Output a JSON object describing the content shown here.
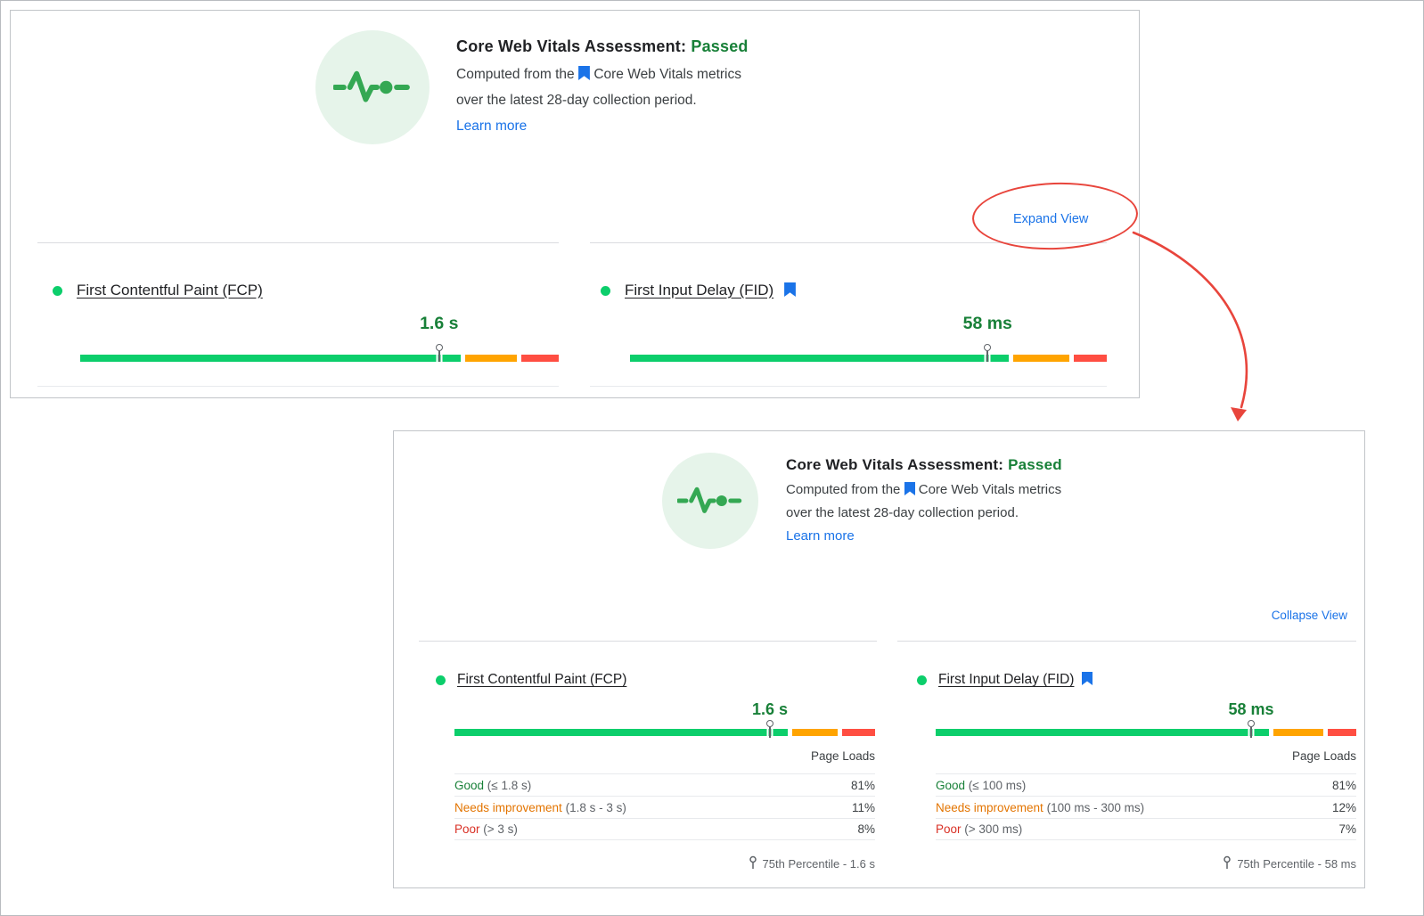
{
  "assessment": {
    "title": "Core Web Vitals Assessment:",
    "status": "Passed",
    "desc_prefix": "Computed from the",
    "desc_metrics_label": "Core Web Vitals metrics",
    "desc_line2": "over the latest 28-day collection period.",
    "learn_more_label": "Learn more"
  },
  "links": {
    "expand_view": "Expand View",
    "collapse_view": "Collapse View"
  },
  "labels": {
    "page_loads": "Page Loads"
  },
  "metrics": {
    "fcp": {
      "name": "First Contentful Paint (FCP)",
      "value": "1.6 s",
      "marker_percent": 75,
      "distribution": {
        "good": 81,
        "needs_improvement": 11,
        "poor": 8
      },
      "rows": [
        {
          "label": "Good",
          "range": "(≤ 1.8 s)",
          "value": "81%"
        },
        {
          "label": "Needs improvement",
          "range": "(1.8 s - 3 s)",
          "value": "11%"
        },
        {
          "label": "Poor",
          "range": "(> 3 s)",
          "value": "8%"
        }
      ],
      "percentile": "75th Percentile - 1.6 s"
    },
    "fid": {
      "name": "First Input Delay (FID)",
      "value": "58 ms",
      "marker_percent": 75,
      "distribution": {
        "good": 81,
        "needs_improvement": 12,
        "poor": 7
      },
      "rows": [
        {
          "label": "Good",
          "range": "(≤ 100 ms)",
          "value": "81%"
        },
        {
          "label": "Needs improvement",
          "range": "(100 ms - 300 ms)",
          "value": "12%"
        },
        {
          "label": "Poor",
          "range": "(> 300 ms)",
          "value": "7%"
        }
      ],
      "percentile": "75th Percentile - 58 ms"
    }
  },
  "colors": {
    "good": "#0cce6b",
    "good_text": "#188038",
    "needs_improvement": "#ffa400",
    "needs_improvement_text": "#e37400",
    "poor": "#ff4e42",
    "poor_text": "#d93025",
    "link": "#1a73e8",
    "annotation": "#e8453c",
    "icon_bg": "#e6f4ea",
    "icon_green": "#34a853"
  }
}
